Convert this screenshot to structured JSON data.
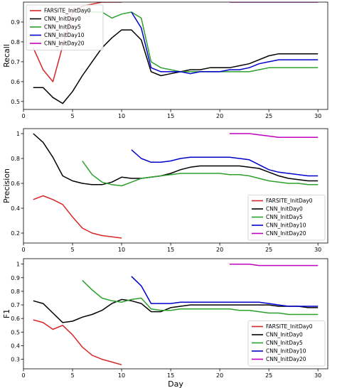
{
  "chart_data": [
    {
      "type": "line",
      "xlabel": "",
      "ylabel": "Recall",
      "xlim": [
        0,
        31
      ],
      "ylim": [
        0.46,
        1.0
      ],
      "xticks": [
        0,
        5,
        10,
        15,
        20,
        25,
        30
      ],
      "yticks": [
        0.5,
        0.6,
        0.7,
        0.8,
        0.9
      ],
      "legend_position": "top-left",
      "series": [
        {
          "name": "FARSITE_InitDay0",
          "color": "#d62728",
          "x": [
            1,
            2,
            3,
            4,
            5,
            6,
            7,
            8,
            9,
            10
          ],
          "y": [
            0.77,
            0.66,
            0.6,
            0.78,
            0.95,
            0.98,
            0.99,
            1.0,
            1.0,
            1.0
          ]
        },
        {
          "name": "CNN_InitDay0",
          "color": "#000000",
          "x": [
            1,
            2,
            3,
            4,
            5,
            6,
            7,
            8,
            9,
            10,
            11,
            12,
            13,
            14,
            15,
            16,
            17,
            18,
            19,
            20,
            21,
            22,
            23,
            24,
            25,
            26,
            27,
            28,
            29,
            30
          ],
          "y": [
            0.57,
            0.57,
            0.52,
            0.49,
            0.55,
            0.63,
            0.7,
            0.77,
            0.82,
            0.86,
            0.86,
            0.81,
            0.65,
            0.63,
            0.64,
            0.65,
            0.66,
            0.66,
            0.67,
            0.67,
            0.67,
            0.68,
            0.69,
            0.71,
            0.73,
            0.74,
            0.74,
            0.74,
            0.74,
            0.74
          ]
        },
        {
          "name": "CNN_InitDay5",
          "color": "#2ca02c",
          "x": [
            6,
            7,
            8,
            9,
            10,
            11,
            12,
            13,
            14,
            15,
            16,
            17,
            18,
            19,
            20,
            21,
            22,
            23,
            24,
            25,
            26,
            27,
            28,
            29,
            30
          ],
          "y": [
            0.97,
            0.95,
            0.95,
            0.92,
            0.94,
            0.95,
            0.92,
            0.7,
            0.67,
            0.66,
            0.65,
            0.65,
            0.65,
            0.65,
            0.65,
            0.65,
            0.65,
            0.65,
            0.66,
            0.67,
            0.67,
            0.67,
            0.67,
            0.67,
            0.67
          ]
        },
        {
          "name": "CNN_InitDay10",
          "color": "#0000cd",
          "x": [
            11,
            12,
            13,
            14,
            15,
            16,
            17,
            18,
            19,
            20,
            21,
            22,
            23,
            24,
            25,
            26,
            27,
            28,
            29,
            30
          ],
          "y": [
            0.95,
            0.87,
            0.67,
            0.65,
            0.65,
            0.65,
            0.64,
            0.65,
            0.65,
            0.65,
            0.66,
            0.66,
            0.67,
            0.69,
            0.7,
            0.71,
            0.71,
            0.71,
            0.71,
            0.71
          ]
        },
        {
          "name": "CNN_InitDay20",
          "color": "#bf00bf",
          "x": [
            21,
            22,
            23,
            24,
            25,
            26,
            27,
            28,
            29,
            30
          ],
          "y": [
            1.0,
            1.0,
            1.0,
            1.0,
            1.0,
            1.0,
            1.0,
            1.0,
            1.0,
            1.0
          ]
        }
      ]
    },
    {
      "type": "line",
      "xlabel": "",
      "ylabel": "Precision",
      "xlim": [
        0,
        31
      ],
      "ylim": [
        0.12,
        1.04
      ],
      "xticks": [
        0,
        5,
        10,
        15,
        20,
        25,
        30
      ],
      "yticks": [
        0.2,
        0.4,
        0.6,
        0.8,
        1.0
      ],
      "legend_position": "bottom-right",
      "series": [
        {
          "name": "FARSITE_InitDay0",
          "color": "#d62728",
          "x": [
            1,
            2,
            3,
            4,
            5,
            6,
            7,
            8,
            9,
            10
          ],
          "y": [
            0.47,
            0.5,
            0.47,
            0.43,
            0.33,
            0.24,
            0.2,
            0.18,
            0.17,
            0.16
          ]
        },
        {
          "name": "CNN_InitDay0",
          "color": "#000000",
          "x": [
            1,
            2,
            3,
            4,
            5,
            6,
            7,
            8,
            9,
            10,
            11,
            12,
            13,
            14,
            15,
            16,
            17,
            18,
            19,
            20,
            21,
            22,
            23,
            24,
            25,
            26,
            27,
            28,
            29,
            30
          ],
          "y": [
            1.0,
            0.93,
            0.81,
            0.66,
            0.62,
            0.6,
            0.59,
            0.59,
            0.61,
            0.65,
            0.64,
            0.64,
            0.65,
            0.66,
            0.68,
            0.71,
            0.73,
            0.74,
            0.74,
            0.74,
            0.74,
            0.74,
            0.73,
            0.72,
            0.69,
            0.66,
            0.64,
            0.63,
            0.62,
            0.62
          ]
        },
        {
          "name": "CNN_InitDay5",
          "color": "#2ca02c",
          "x": [
            6,
            7,
            8,
            9,
            10,
            11,
            12,
            13,
            14,
            15,
            16,
            17,
            18,
            19,
            20,
            21,
            22,
            23,
            24,
            25,
            26,
            27,
            28,
            29,
            30
          ],
          "y": [
            0.78,
            0.67,
            0.61,
            0.59,
            0.58,
            0.61,
            0.64,
            0.65,
            0.66,
            0.67,
            0.68,
            0.68,
            0.68,
            0.68,
            0.68,
            0.67,
            0.67,
            0.66,
            0.64,
            0.62,
            0.61,
            0.6,
            0.6,
            0.59,
            0.59
          ]
        },
        {
          "name": "CNN_InitDay10",
          "color": "#0000cd",
          "x": [
            11,
            12,
            13,
            14,
            15,
            16,
            17,
            18,
            19,
            20,
            21,
            22,
            23,
            24,
            25,
            26,
            27,
            28,
            29,
            30
          ],
          "y": [
            0.87,
            0.8,
            0.77,
            0.77,
            0.78,
            0.8,
            0.81,
            0.81,
            0.81,
            0.81,
            0.81,
            0.8,
            0.79,
            0.75,
            0.71,
            0.69,
            0.68,
            0.67,
            0.66,
            0.66
          ]
        },
        {
          "name": "CNN_InitDay20",
          "color": "#bf00bf",
          "x": [
            21,
            22,
            23,
            24,
            25,
            26,
            27,
            28,
            29,
            30
          ],
          "y": [
            1.0,
            1.0,
            1.0,
            0.99,
            0.98,
            0.97,
            0.97,
            0.97,
            0.97,
            0.97
          ]
        }
      ]
    },
    {
      "type": "line",
      "xlabel": "Day",
      "ylabel": "F1",
      "xlim": [
        0,
        31
      ],
      "ylim": [
        0.23,
        1.04
      ],
      "xticks": [
        0,
        5,
        10,
        15,
        20,
        25,
        30
      ],
      "yticks": [
        0.3,
        0.4,
        0.5,
        0.6,
        0.7,
        0.8,
        0.9,
        1.0
      ],
      "legend_position": "bottom-right",
      "series": [
        {
          "name": "FARSITE_InitDay0",
          "color": "#d62728",
          "x": [
            1,
            2,
            3,
            4,
            5,
            6,
            7,
            8,
            9,
            10
          ],
          "y": [
            0.59,
            0.57,
            0.52,
            0.55,
            0.48,
            0.39,
            0.33,
            0.3,
            0.28,
            0.26
          ]
        },
        {
          "name": "CNN_InitDay0",
          "color": "#000000",
          "x": [
            1,
            2,
            3,
            4,
            5,
            6,
            7,
            8,
            9,
            10,
            11,
            12,
            13,
            14,
            15,
            16,
            17,
            18,
            19,
            20,
            21,
            22,
            23,
            24,
            25,
            26,
            27,
            28,
            29,
            30
          ],
          "y": [
            0.73,
            0.71,
            0.64,
            0.57,
            0.58,
            0.61,
            0.63,
            0.66,
            0.71,
            0.74,
            0.73,
            0.71,
            0.65,
            0.65,
            0.68,
            0.69,
            0.7,
            0.7,
            0.7,
            0.7,
            0.7,
            0.7,
            0.7,
            0.7,
            0.7,
            0.69,
            0.69,
            0.69,
            0.68,
            0.68
          ]
        },
        {
          "name": "CNN_InitDay5",
          "color": "#2ca02c",
          "x": [
            6,
            7,
            8,
            9,
            10,
            11,
            12,
            13,
            14,
            15,
            16,
            17,
            18,
            19,
            20,
            21,
            22,
            23,
            24,
            25,
            26,
            27,
            28,
            29,
            30
          ],
          "y": [
            0.88,
            0.81,
            0.75,
            0.73,
            0.72,
            0.74,
            0.75,
            0.67,
            0.66,
            0.66,
            0.67,
            0.67,
            0.67,
            0.67,
            0.67,
            0.67,
            0.66,
            0.66,
            0.65,
            0.64,
            0.64,
            0.63,
            0.63,
            0.63,
            0.63
          ]
        },
        {
          "name": "CNN_InitDay10",
          "color": "#0000cd",
          "x": [
            11,
            12,
            13,
            14,
            15,
            16,
            17,
            18,
            19,
            20,
            21,
            22,
            23,
            24,
            25,
            26,
            27,
            28,
            29,
            30
          ],
          "y": [
            0.91,
            0.84,
            0.71,
            0.71,
            0.71,
            0.72,
            0.72,
            0.72,
            0.72,
            0.72,
            0.72,
            0.72,
            0.72,
            0.72,
            0.71,
            0.7,
            0.69,
            0.69,
            0.69,
            0.69
          ]
        },
        {
          "name": "CNN_InitDay20",
          "color": "#bf00bf",
          "x": [
            21,
            22,
            23,
            24,
            25,
            26,
            27,
            28,
            29,
            30
          ],
          "y": [
            1.0,
            1.0,
            1.0,
            0.99,
            0.99,
            0.99,
            0.99,
            0.99,
            0.99,
            0.99
          ]
        }
      ]
    }
  ]
}
